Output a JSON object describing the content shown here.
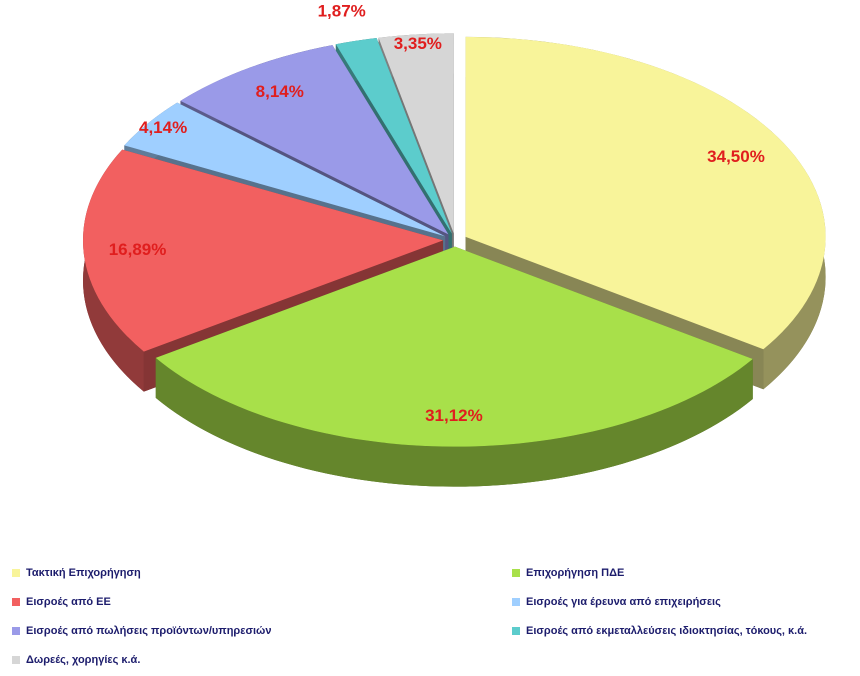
{
  "chart_data": {
    "type": "pie3d",
    "categories": [
      "Τακτική Επιχορήγηση",
      "Επιχορήγηση ΠΔΕ",
      "Εισροές από ΕΕ",
      "Εισροές για έρευνα από επιχειρήσεις",
      "Εισροές από πωλήσεις προϊόντων/υπηρεσιών",
      "Εισροές από εκμεταλλεύσεις ιδιοκτησίας, τόκους, κ.ά.",
      "Δωρεές, χορηγίες κ.ά."
    ],
    "values": [
      34.5,
      31.12,
      16.89,
      4.14,
      8.14,
      1.87,
      3.35
    ],
    "value_labels": [
      "34,50%",
      "31,12%",
      "16,89%",
      "4,14%",
      "8,14%",
      "1,87%",
      "3,35%"
    ],
    "colors": [
      "#f8f49a",
      "#a8e04a",
      "#f26060",
      "#9fcfff",
      "#9a9ae8",
      "#5ccccc",
      "#d6d6d6"
    ],
    "legend": "bottom"
  }
}
